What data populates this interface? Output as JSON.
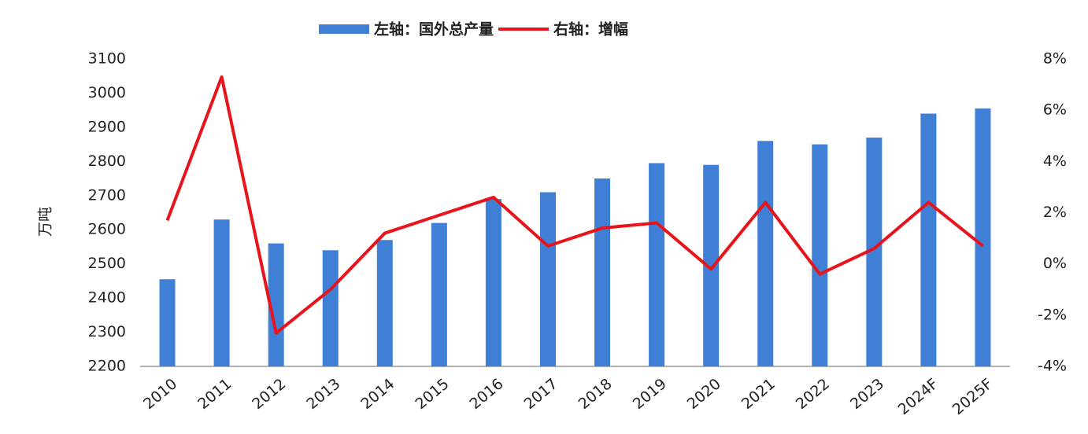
{
  "chart_data": {
    "type": "bar-line",
    "y_label": "万吨",
    "categories": [
      "2010",
      "2011",
      "2012",
      "2013",
      "2014",
      "2015",
      "2016",
      "2017",
      "2018",
      "2019",
      "2020",
      "2021",
      "2022",
      "2023",
      "2024F",
      "2025F"
    ],
    "series": [
      {
        "name": "左轴：国外总产量",
        "type": "bar",
        "color": "#3f7fd6",
        "values": [
          2455,
          2630,
          2560,
          2540,
          2570,
          2620,
          2690,
          2710,
          2750,
          2795,
          2790,
          2860,
          2850,
          2870,
          2940,
          2955
        ]
      },
      {
        "name": "右轴：增幅",
        "type": "line",
        "axis": "y2",
        "color": "#e8141c",
        "values": [
          1.7,
          7.3,
          -2.7,
          -1.0,
          1.2,
          1.9,
          2.6,
          0.7,
          1.4,
          1.6,
          -0.2,
          2.4,
          -0.4,
          0.6,
          2.4,
          0.7
        ]
      }
    ],
    "ylim": [
      2200,
      3100
    ],
    "yticks": [
      2200,
      2300,
      2400,
      2500,
      2600,
      2700,
      2800,
      2900,
      3000,
      3100
    ],
    "y2lim": [
      -4,
      8
    ],
    "y2ticks": [
      {
        "value": -4,
        "label": "-4%"
      },
      {
        "value": -2,
        "label": "-2%"
      },
      {
        "value": 0,
        "label": "0%"
      },
      {
        "value": 2,
        "label": "2%"
      },
      {
        "value": 4,
        "label": "4%"
      },
      {
        "value": 6,
        "label": "6%"
      },
      {
        "value": 8,
        "label": "8%"
      }
    ],
    "legend": "top",
    "grid": false
  }
}
